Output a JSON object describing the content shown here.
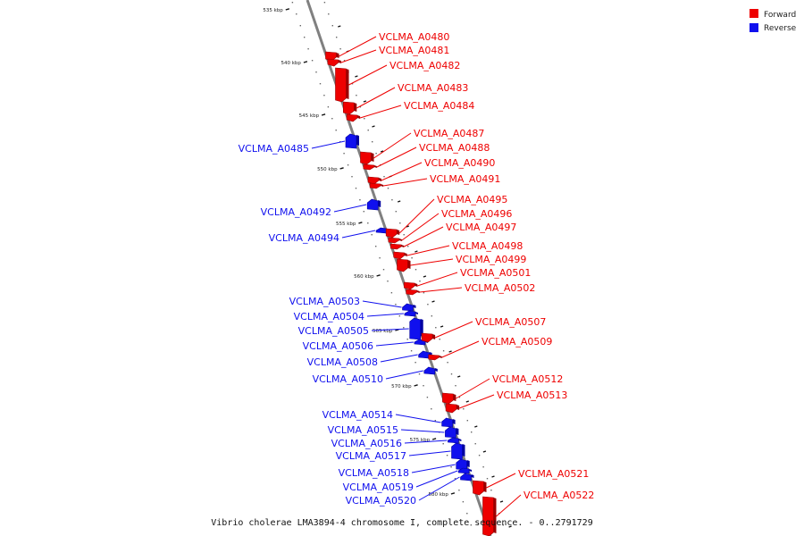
{
  "caption": "Vibrio cholerae LMA3894-4 chromosome I, complete sequence. - 0..2791729",
  "legend": {
    "forward_label": "Forward",
    "reverse_label": "Reverse",
    "forward_color": "#ee0000",
    "reverse_color": "#1010ee"
  },
  "ticks": [
    "535 kbp",
    "540 kbp",
    "545 kbp",
    "550 kbp",
    "555 kbp",
    "560 kbp",
    "565 kbp",
    "570 kbp",
    "575 kbp",
    "580 kbp"
  ],
  "genes": [
    {
      "name": "VCLMA_A0480",
      "strand": "forward"
    },
    {
      "name": "VCLMA_A0481",
      "strand": "forward"
    },
    {
      "name": "VCLMA_A0482",
      "strand": "forward"
    },
    {
      "name": "VCLMA_A0483",
      "strand": "forward"
    },
    {
      "name": "VCLMA_A0484",
      "strand": "forward"
    },
    {
      "name": "VCLMA_A0485",
      "strand": "reverse"
    },
    {
      "name": "VCLMA_A0487",
      "strand": "forward"
    },
    {
      "name": "VCLMA_A0488",
      "strand": "forward"
    },
    {
      "name": "VCLMA_A0490",
      "strand": "forward"
    },
    {
      "name": "VCLMA_A0491",
      "strand": "forward"
    },
    {
      "name": "VCLMA_A0492",
      "strand": "reverse"
    },
    {
      "name": "VCLMA_A0494",
      "strand": "reverse"
    },
    {
      "name": "VCLMA_A0495",
      "strand": "forward"
    },
    {
      "name": "VCLMA_A0496",
      "strand": "forward"
    },
    {
      "name": "VCLMA_A0497",
      "strand": "forward"
    },
    {
      "name": "VCLMA_A0498",
      "strand": "forward"
    },
    {
      "name": "VCLMA_A0499",
      "strand": "forward"
    },
    {
      "name": "VCLMA_A0501",
      "strand": "forward"
    },
    {
      "name": "VCLMA_A0502",
      "strand": "forward"
    },
    {
      "name": "VCLMA_A0503",
      "strand": "reverse"
    },
    {
      "name": "VCLMA_A0504",
      "strand": "reverse"
    },
    {
      "name": "VCLMA_A0505",
      "strand": "reverse"
    },
    {
      "name": "VCLMA_A0506",
      "strand": "reverse"
    },
    {
      "name": "VCLMA_A0507",
      "strand": "forward"
    },
    {
      "name": "VCLMA_A0508",
      "strand": "reverse"
    },
    {
      "name": "VCLMA_A0509",
      "strand": "forward"
    },
    {
      "name": "VCLMA_A0510",
      "strand": "reverse"
    },
    {
      "name": "VCLMA_A0512",
      "strand": "forward"
    },
    {
      "name": "VCLMA_A0513",
      "strand": "forward"
    },
    {
      "name": "VCLMA_A0514",
      "strand": "reverse"
    },
    {
      "name": "VCLMA_A0515",
      "strand": "reverse"
    },
    {
      "name": "VCLMA_A0516",
      "strand": "reverse"
    },
    {
      "name": "VCLMA_A0517",
      "strand": "reverse"
    },
    {
      "name": "VCLMA_A0518",
      "strand": "reverse"
    },
    {
      "name": "VCLMA_A0519",
      "strand": "reverse"
    },
    {
      "name": "VCLMA_A0520",
      "strand": "reverse"
    },
    {
      "name": "VCLMA_A0521",
      "strand": "forward"
    },
    {
      "name": "VCLMA_A0522",
      "strand": "forward"
    }
  ]
}
